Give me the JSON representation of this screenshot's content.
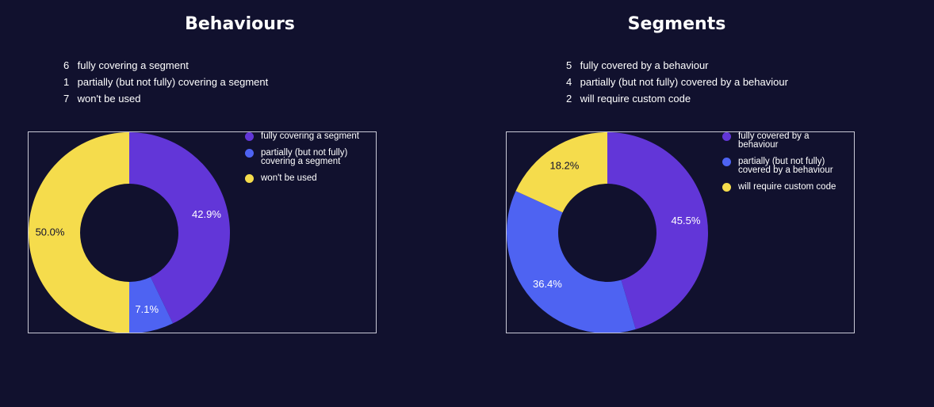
{
  "colors": {
    "background": "#11112e",
    "purple": "#6236d8",
    "blue": "#4e63f2",
    "yellow": "#f5dc4c",
    "frame": "#c9c9d6"
  },
  "panels": [
    {
      "title": "Behaviours",
      "summary": [
        {
          "count": "6",
          "text": "fully covering a segment"
        },
        {
          "count": "1",
          "text": "partially (but not fully) covering a segment"
        },
        {
          "count": "7",
          "text": "won't be used"
        }
      ]
    },
    {
      "title": "Segments",
      "summary": [
        {
          "count": "5",
          "text": "fully covered by a behaviour"
        },
        {
          "count": "4",
          "text": "partially (but not fully) covered by a behaviour"
        },
        {
          "count": "2",
          "text": "will require custom code"
        }
      ]
    }
  ],
  "chart_data": [
    {
      "type": "pie",
      "donut": true,
      "legend_position": "right",
      "categories": [
        "fully covering a segment",
        "partially (but not fully) covering a segment",
        "won't be used"
      ],
      "legend_lines": [
        [
          "fully covering a segment"
        ],
        [
          "partially (but not fully)",
          "covering a segment"
        ],
        [
          "won't be used"
        ]
      ],
      "values": [
        6,
        1,
        7
      ],
      "labels": [
        "42.9%",
        "7.1%",
        "50.0%"
      ],
      "colors": [
        "#6236d8",
        "#4e63f2",
        "#f5dc4c"
      ],
      "label_colors": [
        "#ffffff",
        "#ffffff",
        "#11112e"
      ]
    },
    {
      "type": "pie",
      "donut": true,
      "legend_position": "right",
      "categories": [
        "fully covered by a behaviour",
        "partially (but not fully) covered by a behaviour",
        "will require custom code"
      ],
      "legend_lines": [
        [
          "fully covered by a",
          "behaviour"
        ],
        [
          "partially (but not fully)",
          "covered by a behaviour"
        ],
        [
          "will require custom code"
        ]
      ],
      "values": [
        5,
        4,
        2
      ],
      "labels": [
        "45.5%",
        "36.4%",
        "18.2%"
      ],
      "colors": [
        "#6236d8",
        "#4e63f2",
        "#f5dc4c"
      ],
      "label_colors": [
        "#ffffff",
        "#ffffff",
        "#11112e"
      ]
    }
  ]
}
